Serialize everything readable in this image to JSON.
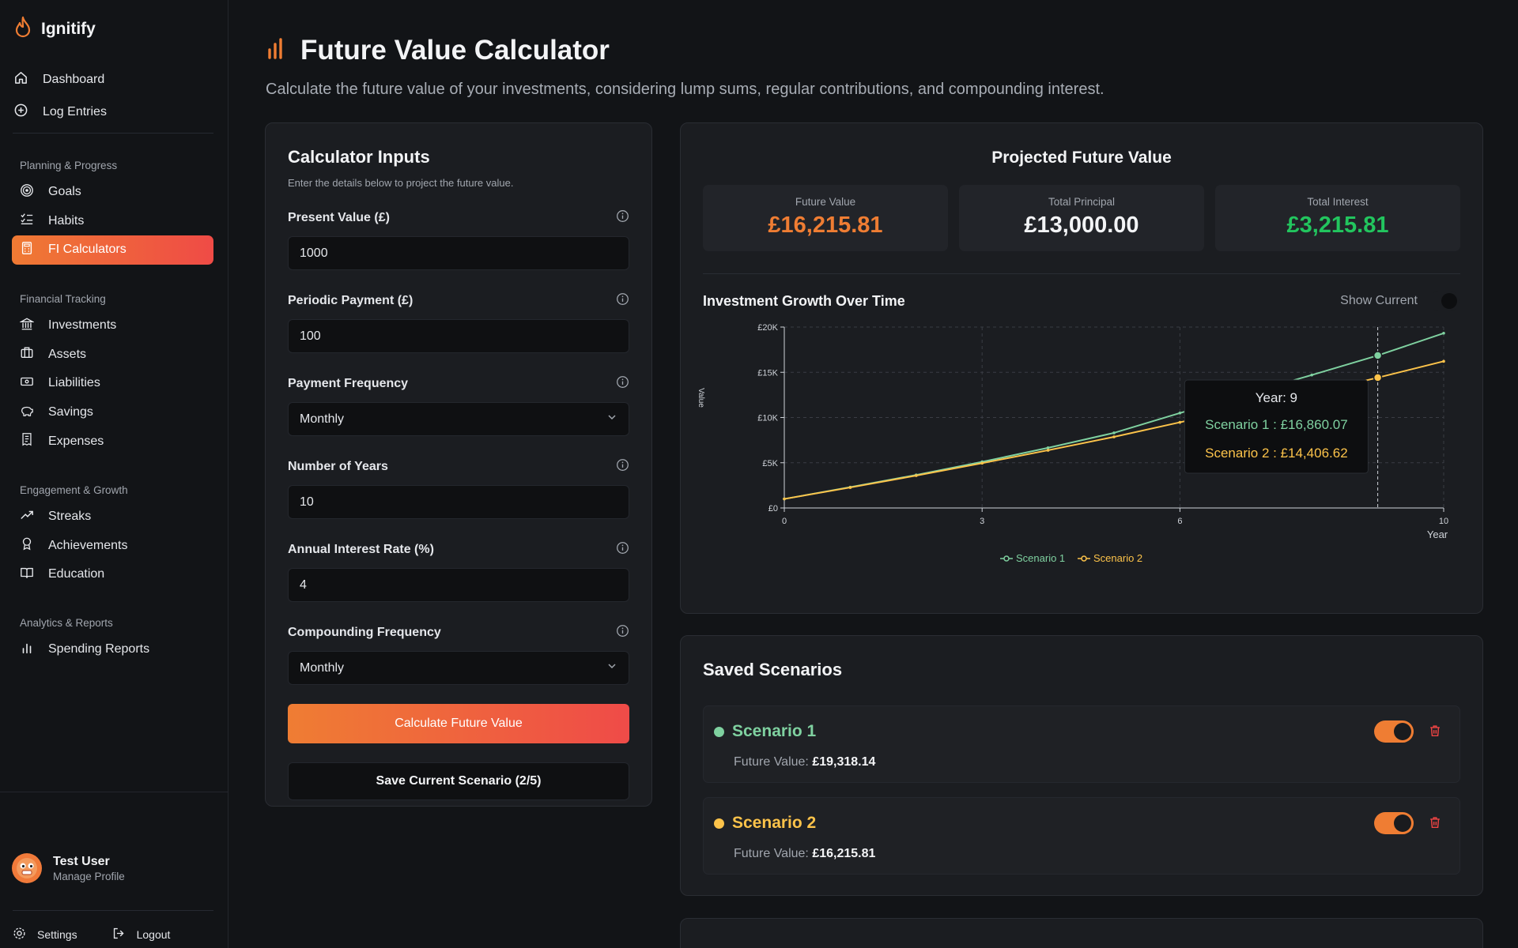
{
  "app": {
    "name": "Ignitify"
  },
  "nav_top": [
    {
      "label": "Dashboard",
      "icon": "home-icon"
    },
    {
      "label": "Log Entries",
      "icon": "plus-circle-icon"
    }
  ],
  "sections": [
    {
      "title": "Planning & Progress",
      "items": [
        {
          "label": "Goals",
          "icon": "target-icon"
        },
        {
          "label": "Habits",
          "icon": "list-check-icon"
        },
        {
          "label": "FI Calculators",
          "icon": "calculator-icon",
          "active": true
        }
      ]
    },
    {
      "title": "Financial Tracking",
      "items": [
        {
          "label": "Investments",
          "icon": "bank-icon"
        },
        {
          "label": "Assets",
          "icon": "briefcase-icon"
        },
        {
          "label": "Liabilities",
          "icon": "banknote-icon"
        },
        {
          "label": "Savings",
          "icon": "piggy-bank-icon"
        },
        {
          "label": "Expenses",
          "icon": "receipt-icon"
        }
      ]
    },
    {
      "title": "Engagement & Growth",
      "items": [
        {
          "label": "Streaks",
          "icon": "trending-up-icon"
        },
        {
          "label": "Achievements",
          "icon": "award-icon"
        },
        {
          "label": "Education",
          "icon": "book-icon"
        }
      ]
    },
    {
      "title": "Analytics & Reports",
      "items": [
        {
          "label": "Spending Reports",
          "icon": "bar-chart-icon"
        }
      ]
    }
  ],
  "profile": {
    "name": "Test User",
    "sub": "Manage Profile"
  },
  "footer": {
    "settings": "Settings",
    "logout": "Logout"
  },
  "page": {
    "title": "Future Value Calculator",
    "subtitle": "Calculate the future value of your investments, considering lump sums, regular contributions, and compounding interest."
  },
  "inputs": {
    "title": "Calculator Inputs",
    "desc": "Enter the details below to project the future value.",
    "fields": [
      {
        "label": "Present Value (£)",
        "value": "1000",
        "type": "input"
      },
      {
        "label": "Periodic Payment (£)",
        "value": "100",
        "type": "input"
      },
      {
        "label": "Payment Frequency",
        "value": "Monthly",
        "type": "select"
      },
      {
        "label": "Number of Years",
        "value": "10",
        "type": "input"
      },
      {
        "label": "Annual Interest Rate (%)",
        "value": "4",
        "type": "input"
      },
      {
        "label": "Compounding Frequency",
        "value": "Monthly",
        "type": "select"
      }
    ],
    "calculate": "Calculate Future Value",
    "save": "Save Current Scenario (2/5)"
  },
  "results": {
    "title": "Projected Future Value",
    "stats": [
      {
        "label": "Future Value",
        "value": "£16,215.81",
        "color": "#ef7d33"
      },
      {
        "label": "Total Principal",
        "value": "£13,000.00",
        "color": "#f3f4f6"
      },
      {
        "label": "Total Interest",
        "value": "£3,215.81",
        "color": "#22c55e"
      }
    ],
    "chart_title": "Investment Growth Over Time",
    "show_current": "Show Current"
  },
  "chart_data": {
    "type": "line",
    "title": "Investment Growth Over Time",
    "xlabel": "Year",
    "ylabel": "Value",
    "x": [
      0,
      1,
      2,
      3,
      4,
      5,
      6,
      7,
      8,
      9,
      10
    ],
    "xticks": [
      "0",
      "3",
      "6",
      "10"
    ],
    "xtick_values": [
      0,
      3,
      6,
      10
    ],
    "yticks": [
      "£0",
      "£5K",
      "£10K",
      "£15K",
      "£20K"
    ],
    "ytick_values": [
      0,
      5000,
      10000,
      15000,
      20000
    ],
    "ylim": [
      0,
      20000
    ],
    "xlim": [
      0,
      10
    ],
    "grid": true,
    "legend": "bottom",
    "series": [
      {
        "name": "Scenario 1",
        "color": "#7fd1a0",
        "values": [
          1000,
          2300,
          3650,
          5100,
          6650,
          8300,
          10500,
          12600,
          14700,
          16860.07,
          19318.14
        ]
      },
      {
        "name": "Scenario 2",
        "color": "#fcc34a",
        "values": [
          1000,
          2265,
          3580,
          4950,
          6380,
          7860,
          9470,
          11100,
          12700,
          14406.62,
          16215.81
        ]
      }
    ],
    "tooltip": {
      "x": 9,
      "title": "Year: 9",
      "lines": [
        "Scenario 1 : £16,860.07",
        "Scenario 2 : £14,406.62"
      ]
    }
  },
  "scenarios": {
    "title": "Saved Scenarios",
    "items": [
      {
        "name": "Scenario 1",
        "fv_label": "Future Value:",
        "fv": "£19,318.14",
        "color": "#7fd1a0"
      },
      {
        "name": "Scenario 2",
        "fv_label": "Future Value:",
        "fv": "£16,215.81",
        "color": "#fcc34a"
      }
    ]
  }
}
